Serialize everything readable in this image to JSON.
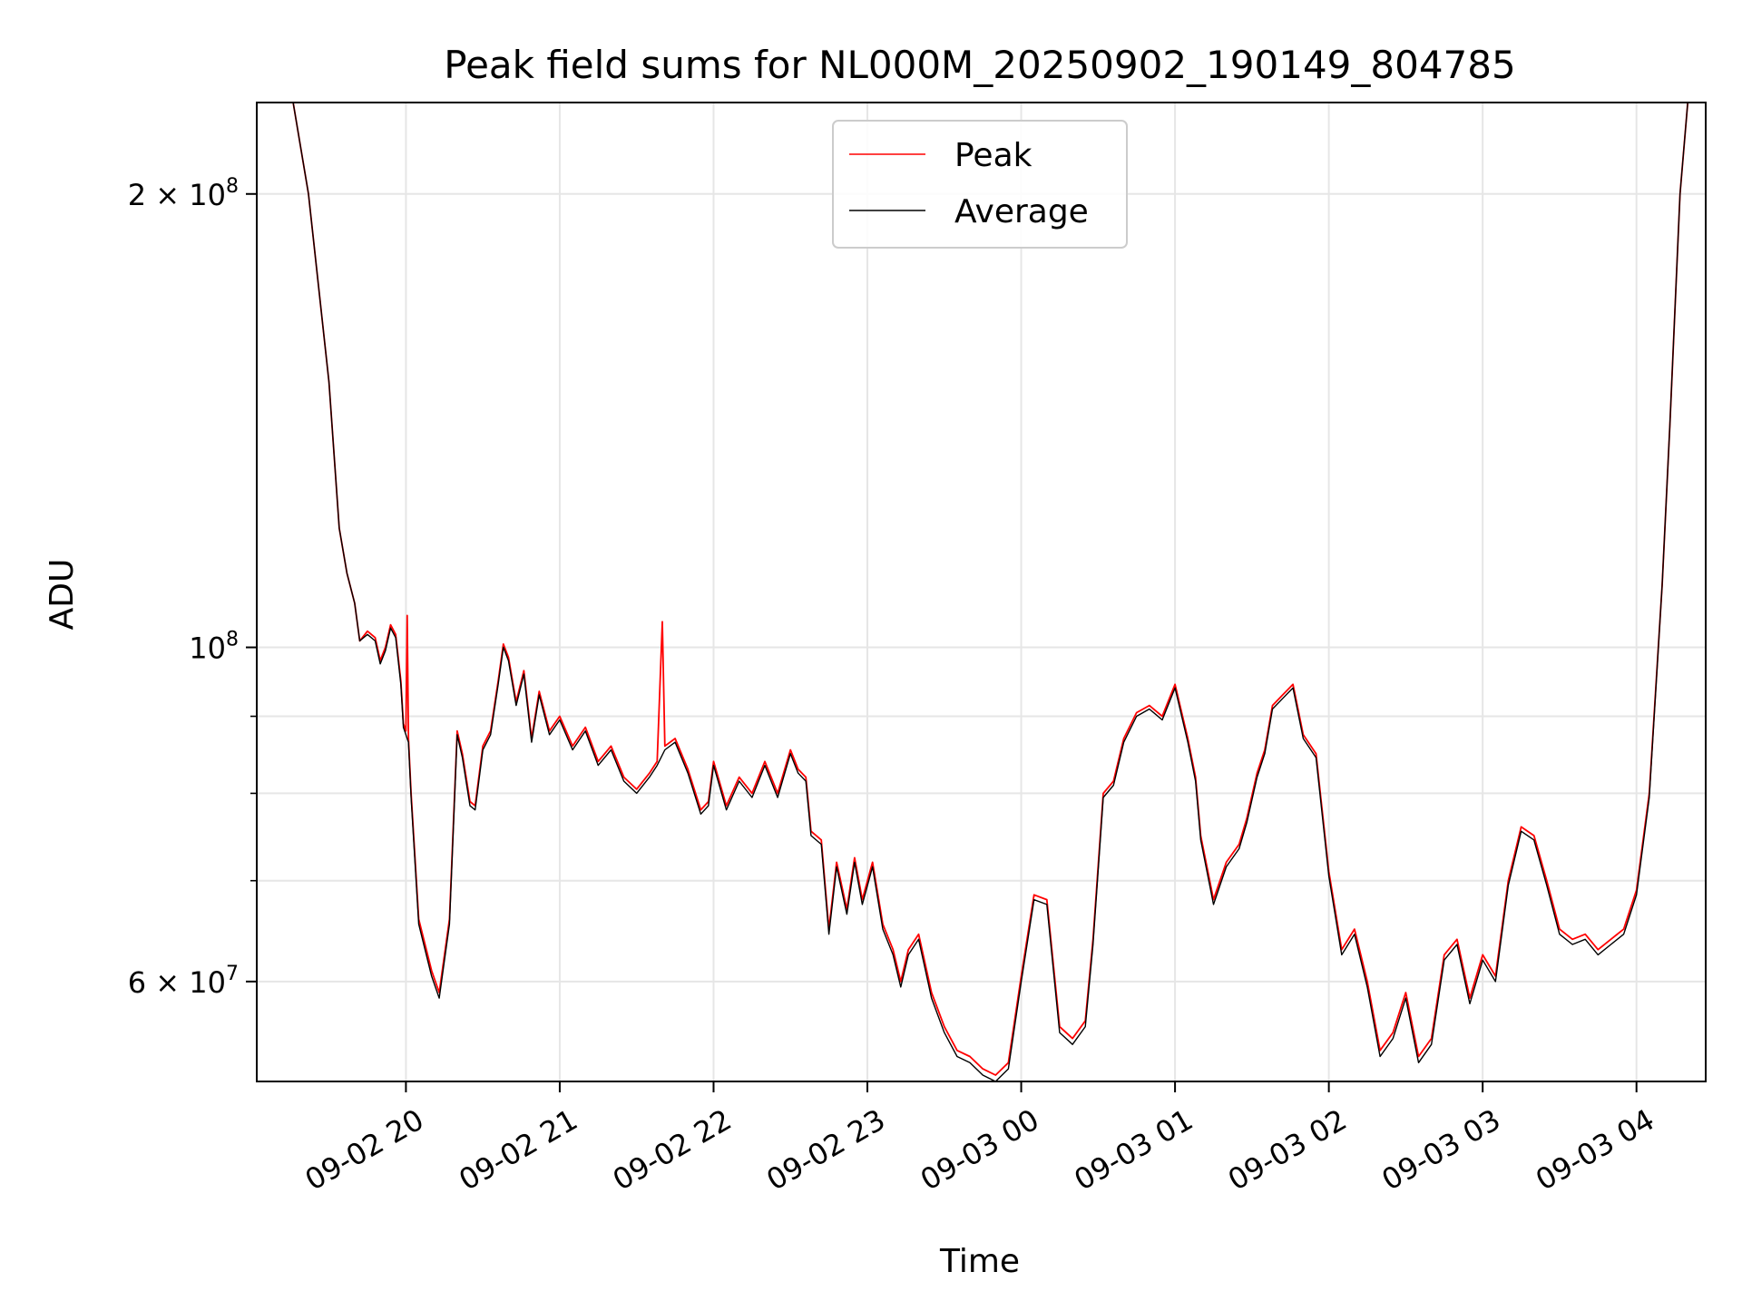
{
  "chart_data": {
    "type": "line",
    "title": "Peak field sums for NL000M_20250902_190149_804785",
    "xlabel": "Time",
    "ylabel": "ADU",
    "yscale": "log",
    "ylim": [
      51500000,
      230000000
    ],
    "xlim": [
      "2025-09-02T19:01:49",
      "2025-09-03T04:27:00"
    ],
    "grid": true,
    "legend_position": "upper center",
    "x_ticks": [
      {
        "value": "2025-09-02T20:00",
        "label": "09-02 20"
      },
      {
        "value": "2025-09-02T21:00",
        "label": "09-02 21"
      },
      {
        "value": "2025-09-02T22:00",
        "label": "09-02 22"
      },
      {
        "value": "2025-09-02T23:00",
        "label": "09-02 23"
      },
      {
        "value": "2025-09-03T00:00",
        "label": "09-03 00"
      },
      {
        "value": "2025-09-03T01:00",
        "label": "09-03 01"
      },
      {
        "value": "2025-09-03T02:00",
        "label": "09-03 02"
      },
      {
        "value": "2025-09-03T03:00",
        "label": "09-03 03"
      },
      {
        "value": "2025-09-03T04:00",
        "label": "09-03 04"
      }
    ],
    "y_ticks_major": [
      {
        "value": 60000000,
        "mantissa": "6",
        "exponent": "7"
      },
      {
        "value": 100000000,
        "mantissa": "",
        "exponent": "8"
      },
      {
        "value": 200000000,
        "mantissa": "2",
        "exponent": "8"
      }
    ],
    "y_ticks_minor": [
      70000000,
      80000000,
      90000000
    ],
    "series": [
      {
        "name": "Peak",
        "color": "#ff0000",
        "x": [
          "2025-09-02T19:01:49",
          "2025-09-02T19:16",
          "2025-09-02T19:22",
          "2025-09-02T19:30",
          "2025-09-02T19:34",
          "2025-09-02T19:37",
          "2025-09-02T19:40",
          "2025-09-02T19:42",
          "2025-09-02T19:45",
          "2025-09-02T19:48",
          "2025-09-02T19:50",
          "2025-09-02T19:52",
          "2025-09-02T19:54",
          "2025-09-02T19:56",
          "2025-09-02T19:58",
          "2025-09-02T19:59",
          "2025-09-02T20:00",
          "2025-09-02T20:00:30",
          "2025-09-02T20:01",
          "2025-09-02T20:02",
          "2025-09-02T20:05",
          "2025-09-02T20:10",
          "2025-09-02T20:13",
          "2025-09-02T20:17",
          "2025-09-02T20:20",
          "2025-09-02T20:22",
          "2025-09-02T20:25",
          "2025-09-02T20:27",
          "2025-09-02T20:30",
          "2025-09-02T20:33",
          "2025-09-02T20:36",
          "2025-09-02T20:38",
          "2025-09-02T20:40",
          "2025-09-02T20:43",
          "2025-09-02T20:46",
          "2025-09-02T20:49",
          "2025-09-02T20:52",
          "2025-09-02T20:56",
          "2025-09-02T21:00",
          "2025-09-02T21:05",
          "2025-09-02T21:10",
          "2025-09-02T21:15",
          "2025-09-02T21:20",
          "2025-09-02T21:25",
          "2025-09-02T21:30",
          "2025-09-02T21:35",
          "2025-09-02T21:38",
          "2025-09-02T21:40",
          "2025-09-02T21:41",
          "2025-09-02T21:45",
          "2025-09-02T21:50",
          "2025-09-02T21:55",
          "2025-09-02T21:58",
          "2025-09-02T22:00",
          "2025-09-02T22:05",
          "2025-09-02T22:10",
          "2025-09-02T22:15",
          "2025-09-02T22:20",
          "2025-09-02T22:25",
          "2025-09-02T22:30",
          "2025-09-02T22:33",
          "2025-09-02T22:36",
          "2025-09-02T22:38",
          "2025-09-02T22:42",
          "2025-09-02T22:45",
          "2025-09-02T22:48",
          "2025-09-02T22:52",
          "2025-09-02T22:55",
          "2025-09-02T22:58",
          "2025-09-02T23:02",
          "2025-09-02T23:06",
          "2025-09-02T23:10",
          "2025-09-02T23:13",
          "2025-09-02T23:16",
          "2025-09-02T23:20",
          "2025-09-02T23:25",
          "2025-09-02T23:30",
          "2025-09-02T23:35",
          "2025-09-02T23:40",
          "2025-09-02T23:45",
          "2025-09-02T23:50",
          "2025-09-02T23:55",
          "2025-09-03T00:00",
          "2025-09-03T00:05",
          "2025-09-03T00:10",
          "2025-09-03T00:15",
          "2025-09-03T00:20",
          "2025-09-03T00:25",
          "2025-09-03T00:28",
          "2025-09-03T00:32",
          "2025-09-03T00:36",
          "2025-09-03T00:40",
          "2025-09-03T00:45",
          "2025-09-03T00:50",
          "2025-09-03T00:55",
          "2025-09-03T01:00",
          "2025-09-03T01:05",
          "2025-09-03T01:08",
          "2025-09-03T01:10",
          "2025-09-03T01:15",
          "2025-09-03T01:20",
          "2025-09-03T01:25",
          "2025-09-03T01:28",
          "2025-09-03T01:32",
          "2025-09-03T01:35",
          "2025-09-03T01:38",
          "2025-09-03T01:42",
          "2025-09-03T01:46",
          "2025-09-03T01:50",
          "2025-09-03T01:55",
          "2025-09-03T02:00",
          "2025-09-03T02:05",
          "2025-09-03T02:10",
          "2025-09-03T02:15",
          "2025-09-03T02:20",
          "2025-09-03T02:25",
          "2025-09-03T02:30",
          "2025-09-03T02:35",
          "2025-09-03T02:40",
          "2025-09-03T02:45",
          "2025-09-03T02:50",
          "2025-09-03T02:55",
          "2025-09-03T03:00",
          "2025-09-03T03:05",
          "2025-09-03T03:10",
          "2025-09-03T03:15",
          "2025-09-03T03:20",
          "2025-09-03T03:25",
          "2025-09-03T03:30",
          "2025-09-03T03:35",
          "2025-09-03T03:40",
          "2025-09-03T03:45",
          "2025-09-03T03:50",
          "2025-09-03T03:55",
          "2025-09-03T04:00",
          "2025-09-03T04:05",
          "2025-09-03T04:10",
          "2025-09-03T04:13",
          "2025-09-03T04:17",
          "2025-09-03T04:20"
        ],
        "values": [
          230000000,
          230000000,
          200000000,
          150000000,
          120000000,
          112000000,
          107000000,
          101000000,
          102500000,
          101500000,
          98000000,
          100000000,
          103500000,
          102000000,
          95000000,
          89000000,
          88000000,
          105000000,
          87000000,
          80000000,
          66000000,
          61000000,
          59000000,
          66000000,
          88000000,
          85000000,
          79000000,
          78500000,
          86000000,
          88000000,
          95000000,
          100500000,
          98500000,
          92000000,
          96500000,
          87000000,
          93500000,
          88000000,
          90000000,
          86000000,
          88500000,
          84000000,
          86000000,
          82000000,
          80500000,
          82500000,
          84000000,
          104000000,
          86000000,
          87000000,
          83000000,
          78000000,
          79000000,
          84000000,
          78500000,
          82000000,
          80000000,
          84000000,
          80000000,
          85500000,
          83000000,
          82000000,
          75500000,
          74500000,
          65000000,
          72000000,
          67000000,
          72500000,
          68000000,
          72000000,
          65500000,
          63000000,
          60000000,
          63000000,
          64500000,
          59000000,
          56000000,
          54000000,
          53500000,
          52500000,
          52000000,
          53000000,
          60500000,
          68500000,
          68000000,
          56000000,
          55000000,
          56500000,
          64000000,
          80000000,
          81500000,
          87000000,
          90500000,
          91500000,
          90000000,
          94500000,
          87000000,
          82000000,
          75000000,
          68000000,
          72000000,
          74000000,
          77000000,
          82500000,
          85500000,
          91500000,
          93000000,
          94500000,
          87500000,
          85000000,
          71000000,
          63000000,
          65000000,
          60000000,
          54000000,
          55500000,
          59000000,
          53500000,
          55000000,
          62500000,
          64000000,
          58500000,
          62500000,
          60500000,
          70000000,
          76000000,
          75000000,
          70000000,
          65000000,
          64000000,
          64500000,
          63000000,
          64000000,
          65000000,
          69000000,
          80000000,
          110000000,
          140000000,
          200000000,
          230000000
        ]
      },
      {
        "name": "Average",
        "color": "#000000",
        "x": [
          "2025-09-02T19:01:49",
          "2025-09-02T19:16",
          "2025-09-02T19:22",
          "2025-09-02T19:30",
          "2025-09-02T19:34",
          "2025-09-02T19:37",
          "2025-09-02T19:40",
          "2025-09-02T19:42",
          "2025-09-02T19:45",
          "2025-09-02T19:48",
          "2025-09-02T19:50",
          "2025-09-02T19:52",
          "2025-09-02T19:54",
          "2025-09-02T19:56",
          "2025-09-02T19:58",
          "2025-09-02T19:59",
          "2025-09-02T20:00",
          "2025-09-02T20:01",
          "2025-09-02T20:02",
          "2025-09-02T20:05",
          "2025-09-02T20:10",
          "2025-09-02T20:13",
          "2025-09-02T20:17",
          "2025-09-02T20:20",
          "2025-09-02T20:22",
          "2025-09-02T20:25",
          "2025-09-02T20:27",
          "2025-09-02T20:30",
          "2025-09-02T20:33",
          "2025-09-02T20:36",
          "2025-09-02T20:38",
          "2025-09-02T20:40",
          "2025-09-02T20:43",
          "2025-09-02T20:46",
          "2025-09-02T20:49",
          "2025-09-02T20:52",
          "2025-09-02T20:56",
          "2025-09-02T21:00",
          "2025-09-02T21:05",
          "2025-09-02T21:10",
          "2025-09-02T21:15",
          "2025-09-02T21:20",
          "2025-09-02T21:25",
          "2025-09-02T21:30",
          "2025-09-02T21:35",
          "2025-09-02T21:38",
          "2025-09-02T21:41",
          "2025-09-02T21:45",
          "2025-09-02T21:50",
          "2025-09-02T21:55",
          "2025-09-02T21:58",
          "2025-09-02T22:00",
          "2025-09-02T22:05",
          "2025-09-02T22:10",
          "2025-09-02T22:15",
          "2025-09-02T22:20",
          "2025-09-02T22:25",
          "2025-09-02T22:30",
          "2025-09-02T22:33",
          "2025-09-02T22:36",
          "2025-09-02T22:38",
          "2025-09-02T22:42",
          "2025-09-02T22:45",
          "2025-09-02T22:48",
          "2025-09-02T22:52",
          "2025-09-02T22:55",
          "2025-09-02T22:58",
          "2025-09-02T23:02",
          "2025-09-02T23:06",
          "2025-09-02T23:10",
          "2025-09-02T23:13",
          "2025-09-02T23:16",
          "2025-09-02T23:20",
          "2025-09-02T23:25",
          "2025-09-02T23:30",
          "2025-09-02T23:35",
          "2025-09-02T23:40",
          "2025-09-02T23:45",
          "2025-09-02T23:50",
          "2025-09-02T23:55",
          "2025-09-03T00:00",
          "2025-09-03T00:05",
          "2025-09-03T00:10",
          "2025-09-03T00:15",
          "2025-09-03T00:20",
          "2025-09-03T00:25",
          "2025-09-03T00:28",
          "2025-09-03T00:32",
          "2025-09-03T00:36",
          "2025-09-03T00:40",
          "2025-09-03T00:45",
          "2025-09-03T00:50",
          "2025-09-03T00:55",
          "2025-09-03T01:00",
          "2025-09-03T01:05",
          "2025-09-03T01:08",
          "2025-09-03T01:10",
          "2025-09-03T01:15",
          "2025-09-03T01:20",
          "2025-09-03T01:25",
          "2025-09-03T01:28",
          "2025-09-03T01:32",
          "2025-09-03T01:35",
          "2025-09-03T01:38",
          "2025-09-03T01:42",
          "2025-09-03T01:46",
          "2025-09-03T01:50",
          "2025-09-03T01:55",
          "2025-09-03T02:00",
          "2025-09-03T02:05",
          "2025-09-03T02:10",
          "2025-09-03T02:15",
          "2025-09-03T02:20",
          "2025-09-03T02:25",
          "2025-09-03T02:30",
          "2025-09-03T02:35",
          "2025-09-03T02:40",
          "2025-09-03T02:45",
          "2025-09-03T02:50",
          "2025-09-03T02:55",
          "2025-09-03T03:00",
          "2025-09-03T03:05",
          "2025-09-03T03:10",
          "2025-09-03T03:15",
          "2025-09-03T03:20",
          "2025-09-03T03:25",
          "2025-09-03T03:30",
          "2025-09-03T03:35",
          "2025-09-03T03:40",
          "2025-09-03T03:45",
          "2025-09-03T03:50",
          "2025-09-03T03:55",
          "2025-09-03T04:00",
          "2025-09-03T04:05",
          "2025-09-03T04:10",
          "2025-09-03T04:13",
          "2025-09-03T04:17",
          "2025-09-03T04:20"
        ],
        "values": [
          230000000,
          230000000,
          200000000,
          150000000,
          120000000,
          112000000,
          107000000,
          101000000,
          102000000,
          101000000,
          97500000,
          99500000,
          103000000,
          101500000,
          94500000,
          88500000,
          87500000,
          86500000,
          79500000,
          65500000,
          60500000,
          58500000,
          65500000,
          87500000,
          84500000,
          78500000,
          78000000,
          85500000,
          87500000,
          94500000,
          100000000,
          98000000,
          91500000,
          96000000,
          86500000,
          93000000,
          87500000,
          89500000,
          85500000,
          88000000,
          83500000,
          85500000,
          81500000,
          80000000,
          82000000,
          83500000,
          85500000,
          86500000,
          82500000,
          77500000,
          78500000,
          83500000,
          78000000,
          81500000,
          79500000,
          83500000,
          79500000,
          85000000,
          82500000,
          81500000,
          75000000,
          74000000,
          64500000,
          71500000,
          66500000,
          72000000,
          67500000,
          71500000,
          65000000,
          62500000,
          59500000,
          62500000,
          64000000,
          58500000,
          55500000,
          53500000,
          53000000,
          52000000,
          51500000,
          52500000,
          60000000,
          68000000,
          67500000,
          55500000,
          54500000,
          56000000,
          63500000,
          79500000,
          81000000,
          86500000,
          90000000,
          91000000,
          89500000,
          94000000,
          86500000,
          81500000,
          74500000,
          67500000,
          71500000,
          73500000,
          76500000,
          82000000,
          85000000,
          91000000,
          92500000,
          94000000,
          87000000,
          84500000,
          70500000,
          62500000,
          64500000,
          59500000,
          53500000,
          55000000,
          58500000,
          53000000,
          54500000,
          62000000,
          63500000,
          58000000,
          62000000,
          60000000,
          69500000,
          75500000,
          74500000,
          69500000,
          64500000,
          63500000,
          64000000,
          62500000,
          63500000,
          64500000,
          68500000,
          79500000,
          110000000,
          140000000,
          200000000,
          230000000
        ]
      }
    ]
  }
}
